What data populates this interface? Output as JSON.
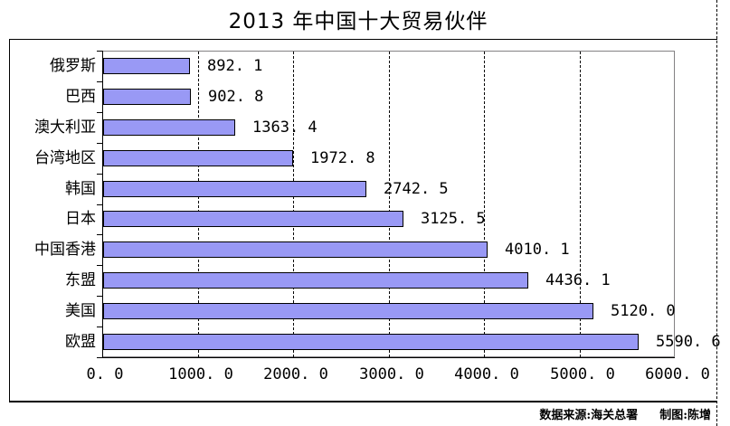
{
  "title": "2013 年中国十大贸易伙伴",
  "footer": {
    "source_label": "数据来源:海关总署",
    "author_label": "制图:陈增"
  },
  "colors": {
    "bar_fill": "#9999f5",
    "bar_border": "#000000",
    "plot_border": "#848284",
    "gridline": "#000000",
    "background": "#ffffff"
  },
  "chart_data": {
    "type": "bar",
    "orientation": "horizontal",
    "title": "2013 年中国十大贸易伙伴",
    "categories_top_to_bottom": [
      "俄罗斯",
      "巴西",
      "澳大利亚",
      "台湾地区",
      "韩国",
      "日本",
      "中国香港",
      "东盟",
      "美国",
      "欧盟"
    ],
    "values": [
      892.1,
      902.8,
      1363.4,
      1972.8,
      2742.5,
      3125.5,
      4010.1,
      4436.1,
      5120.0,
      5590.6
    ],
    "value_labels": [
      "892. 1",
      "902. 8",
      "1363. 4",
      "1972. 8",
      "2742. 5",
      "3125. 5",
      "4010. 1",
      "4436. 1",
      "5120. 0",
      "5590. 6"
    ],
    "xlabel": "",
    "ylabel": "",
    "xlim": [
      0,
      6000
    ],
    "x_ticks": [
      0,
      1000,
      2000,
      3000,
      4000,
      5000,
      6000
    ],
    "x_tick_labels": [
      "0. 0",
      "1000. 0",
      "2000. 0",
      "3000. 0",
      "4000. 0",
      "5000. 0",
      "6000. 0"
    ],
    "grid": "vertical-dashed",
    "legend": "none"
  }
}
